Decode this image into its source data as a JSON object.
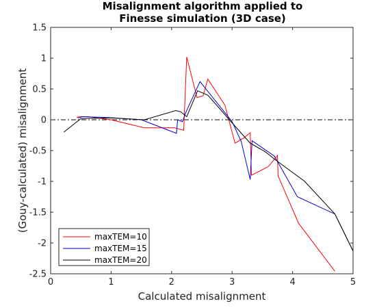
{
  "chart_data": {
    "type": "line",
    "title_line1": "Misalignment algorithm applied to",
    "title_line2": "Finesse simulation (3D case)",
    "xlabel": "Calculated misalignment",
    "ylabel": "(Gouy-calculated) misalignment",
    "xlim": [
      0,
      5
    ],
    "ylim": [
      -2.5,
      1.5
    ],
    "xticks": [
      0,
      1,
      2,
      3,
      4,
      5
    ],
    "xtick_labels": [
      "0",
      "1",
      "2",
      "3",
      "4",
      "5"
    ],
    "yticks": [
      1.5,
      1,
      0.5,
      0,
      -0.5,
      -1,
      -1.5,
      -2,
      -2.5
    ],
    "ytick_labels": [
      "1.5",
      "1",
      "0.5",
      "0",
      "-0.5",
      "-1",
      "-1.5",
      "-2",
      "-2.5"
    ],
    "grid": false,
    "legend_position": "bottom-left",
    "reference_line": {
      "y": 0,
      "style": "dash-dot",
      "color": "#000000"
    },
    "series": [
      {
        "name": "maxTEM=10",
        "color": "#ff0000",
        "x": [
          0.43,
          0.5,
          0.62,
          1.0,
          1.55,
          2.05,
          2.2,
          2.25,
          2.42,
          2.52,
          2.6,
          2.88,
          3.05,
          3.2,
          3.3,
          3.32,
          3.6,
          3.75,
          3.76,
          4.1,
          4.7
        ],
        "y": [
          0.04,
          0.05,
          0.05,
          0.0,
          -0.13,
          -0.13,
          -0.17,
          1.02,
          0.36,
          0.39,
          0.66,
          0.24,
          -0.38,
          -0.29,
          -0.21,
          -0.9,
          -0.76,
          -0.58,
          -0.91,
          -1.68,
          -2.46
        ]
      },
      {
        "name": "maxTEM=15",
        "color": "#0000cc",
        "x": [
          0.45,
          0.53,
          0.85,
          1.05,
          1.5,
          2.08,
          2.1,
          2.18,
          2.24,
          2.47,
          2.6,
          3.0,
          3.15,
          3.3,
          3.33,
          3.7,
          4.08,
          4.7,
          5.0
        ],
        "y": [
          0.03,
          0.05,
          0.04,
          0.03,
          0.0,
          -0.22,
          0.0,
          -0.03,
          0.13,
          0.62,
          0.46,
          -0.03,
          -0.35,
          -0.97,
          -0.34,
          -0.59,
          -1.25,
          -1.53,
          -2.13
        ],
        "clip_to_axes": true
      },
      {
        "name": "maxTEM=20",
        "color": "#000000",
        "x": [
          0.22,
          0.5,
          1.0,
          1.55,
          2.07,
          2.15,
          2.25,
          2.43,
          2.6,
          3.0,
          3.3,
          3.55,
          3.73,
          4.2,
          4.7,
          5.0
        ],
        "y": [
          -0.2,
          0.02,
          0.03,
          0.0,
          0.15,
          0.13,
          0.05,
          0.47,
          0.4,
          -0.05,
          -0.38,
          -0.52,
          -0.66,
          -1.0,
          -1.53,
          -2.13
        ]
      }
    ]
  }
}
